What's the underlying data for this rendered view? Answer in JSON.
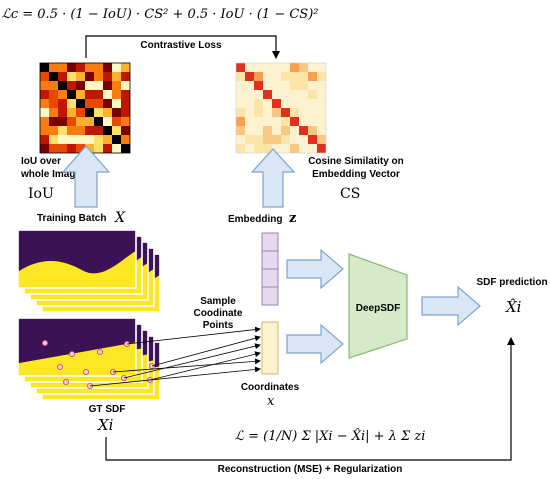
{
  "colors": {
    "iou_hot": [
      "#000000",
      "#7a0000",
      "#c01800",
      "#e84800",
      "#f87c10",
      "#fcb030",
      "#fde068",
      "#fff8c0"
    ],
    "cs_diag": "#e0301e",
    "cs_mid": [
      "#f4a050",
      "#f8c880",
      "#fbe4a8",
      "#fdf2d0"
    ],
    "arrow_fill": "#d8e6f6",
    "arrow_stroke": "#7fa3cc",
    "embedding_fill": "#e6d9ef",
    "embedding_stroke": "#9a83ad",
    "coord_fill": "#fdf1cf",
    "coord_stroke": "#d9b868",
    "deepsdf_fill": "#d4eac8",
    "deepsdf_stroke": "#8cb87c",
    "sdf_purple": "#3b1255",
    "sdf_yellow": "#fde725",
    "point_fill": "#f6c8d8",
    "point_stroke": "#c04870"
  },
  "formulas": {
    "contrastive": "ℒc = 0.5 · (1 − IoU) · CS² + 0.5 · IoU · (1 − CS)²",
    "reconstruction": "ℒ = (1/N) Σ |Xi − X̂i| + λ Σ zi"
  },
  "labels": {
    "contrastive_loss": "Contrastive Loss",
    "iou_over": "IoU over",
    "whole_image": "whole Image",
    "iou_symbol": "IoU",
    "cosine_line1": "Cosine Similatity on",
    "cosine_line2": "Embedding Vector",
    "cs_symbol": "CS",
    "training_batch": "Training Batch",
    "training_batch_sym": "X",
    "embedding": "Embedding",
    "embedding_sym": "z",
    "sample_line1": "Sample",
    "sample_line2": "Coodinate",
    "sample_line3": "Points",
    "deepsdf": "DeepSDF",
    "sdf_prediction": "SDF prediction",
    "sdf_prediction_sym": "X̂i",
    "coordinates": "Coordinates",
    "coordinates_sym": "x",
    "gt_sdf": "GT SDF",
    "gt_sdf_sym": "Xi",
    "reconstruction_reg": "Reconstruction (MSE) + Regularization"
  }
}
